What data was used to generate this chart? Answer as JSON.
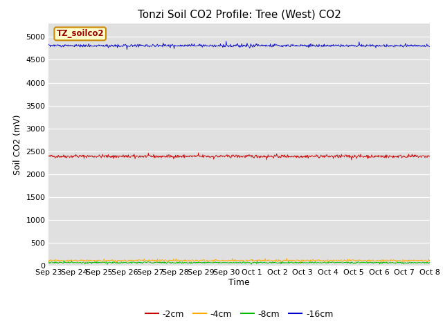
{
  "title": "Tonzi Soil CO2 Profile: Tree (West) CO2",
  "ylabel": "Soil CO2 (mV)",
  "xlabel": "Time",
  "watermark_text": "TZ_soilco2",
  "ylim": [
    0,
    5300
  ],
  "yticks": [
    0,
    500,
    1000,
    1500,
    2000,
    2500,
    3000,
    3500,
    4000,
    4500,
    5000
  ],
  "x_tick_labels": [
    "Sep 23",
    "Sep 24",
    "Sep 25",
    "Sep 26",
    "Sep 27",
    "Sep 28",
    "Sep 29",
    "Sep 30",
    "Oct 1",
    "Oct 2",
    "Oct 3",
    "Oct 4",
    "Oct 5",
    "Oct 6",
    "Oct 7",
    "Oct 8"
  ],
  "n_points": 800,
  "series": [
    {
      "label": "-2cm",
      "color": "#cc0000",
      "base": 2390,
      "noise": 18,
      "spikes": 25
    },
    {
      "label": "-4cm",
      "color": "#ffaa00",
      "base": 110,
      "noise": 10,
      "spikes": 25
    },
    {
      "label": "-8cm",
      "color": "#00bb00",
      "base": 65,
      "noise": 8,
      "spikes": 15
    },
    {
      "label": "-16cm",
      "color": "#0000cc",
      "base": 4810,
      "noise": 15,
      "spikes": 35
    }
  ],
  "bg_color": "#e0e0e0",
  "fig_bg_color": "#ffffff",
  "grid_color": "#ffffff",
  "title_fontsize": 11,
  "axis_label_fontsize": 9,
  "tick_fontsize": 8,
  "legend_fontsize": 9
}
